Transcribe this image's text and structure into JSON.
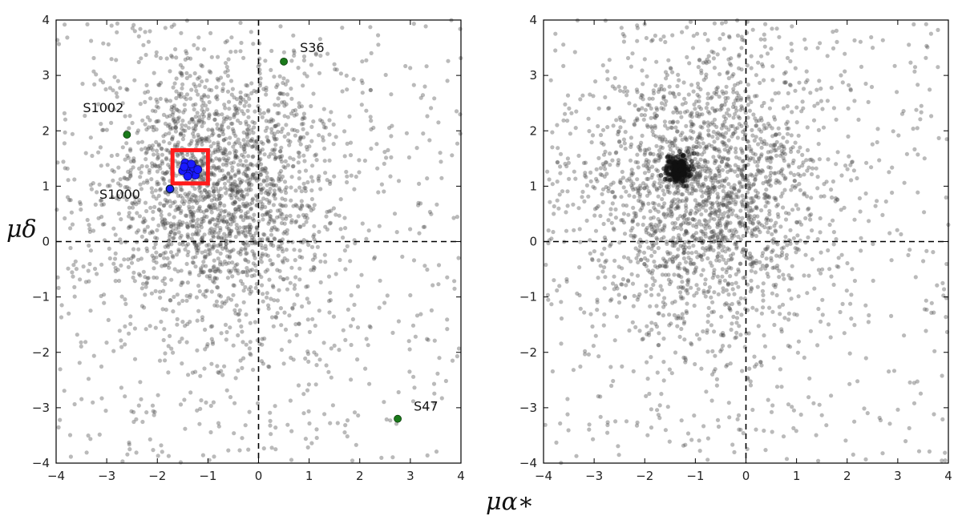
{
  "figure": {
    "x_axis_label": "μα∗",
    "y_axis_label": "μδ"
  },
  "chart_data": [
    {
      "type": "scatter",
      "panel": "left",
      "xlim": [
        -4,
        4
      ],
      "ylim": [
        -4,
        4
      ],
      "xticks": [
        -4,
        -3,
        -2,
        -1,
        0,
        1,
        2,
        3,
        4
      ],
      "yticks": [
        -4,
        -3,
        -2,
        -1,
        0,
        1,
        2,
        3,
        4
      ],
      "xtick_labels": [
        "−4",
        "−3",
        "−2",
        "−1",
        "0",
        "1",
        "2",
        "3",
        "4"
      ],
      "ytick_labels": [
        "−4",
        "−3",
        "−2",
        "−1",
        "0",
        "1",
        "2",
        "3",
        "4"
      ],
      "reference_lines": {
        "x": 0,
        "y": 0,
        "style": "dashed"
      },
      "field_cloud": {
        "color": "#4a4a4a",
        "center": [
          -0.8,
          0.9
        ],
        "spread": [
          1.1,
          1.1
        ],
        "count": 2600
      },
      "member_box": {
        "x": [
          -1.7,
          -1.0
        ],
        "y": [
          1.05,
          1.65
        ],
        "color": "#ff1a1a"
      },
      "members": {
        "color": "#1a1aff",
        "points": [
          [
            -1.35,
            1.3
          ],
          [
            -1.42,
            1.35
          ],
          [
            -1.3,
            1.25
          ],
          [
            -1.25,
            1.2
          ],
          [
            -1.45,
            1.42
          ],
          [
            -1.38,
            1.22
          ],
          [
            -1.28,
            1.33
          ],
          [
            -1.5,
            1.28
          ],
          [
            -1.33,
            1.4
          ],
          [
            -1.2,
            1.3
          ],
          [
            -1.4,
            1.18
          ],
          [
            -1.47,
            1.35
          ],
          [
            -1.75,
            0.95
          ]
        ]
      },
      "labeled_stars": [
        {
          "label": "S36",
          "x": 0.5,
          "y": 3.25,
          "color": "#1a7a1a"
        },
        {
          "label": "S1002",
          "x": -2.6,
          "y": 1.93,
          "color": "#1a7a1a"
        },
        {
          "label": "S1000",
          "x": -1.75,
          "y": 0.95,
          "color": "#1a1aff"
        },
        {
          "label": "S47",
          "x": 2.75,
          "y": -3.2,
          "color": "#1a7a1a"
        }
      ]
    },
    {
      "type": "scatter",
      "panel": "right",
      "xlim": [
        -4,
        4
      ],
      "ylim": [
        -4,
        4
      ],
      "xticks": [
        -4,
        -3,
        -2,
        -1,
        0,
        1,
        2,
        3,
        4
      ],
      "yticks": [
        -4,
        -3,
        -2,
        -1,
        0,
        1,
        2,
        3,
        4
      ],
      "xtick_labels": [
        "−4",
        "−3",
        "−2",
        "−1",
        "0",
        "1",
        "2",
        "3",
        "4"
      ],
      "ytick_labels": [
        "−4",
        "−3",
        "−2",
        "−1",
        "0",
        "1",
        "2",
        "3",
        "4"
      ],
      "reference_lines": {
        "x": 0,
        "y": 0,
        "style": "dashed"
      },
      "field_cloud": {
        "color": "#4a4a4a",
        "center": [
          -0.8,
          0.9
        ],
        "spread": [
          1.1,
          1.1
        ],
        "count": 2600
      },
      "cluster_core": {
        "center": [
          -1.35,
          1.3
        ],
        "spread": [
          0.12,
          0.12
        ],
        "count": 220
      }
    }
  ]
}
